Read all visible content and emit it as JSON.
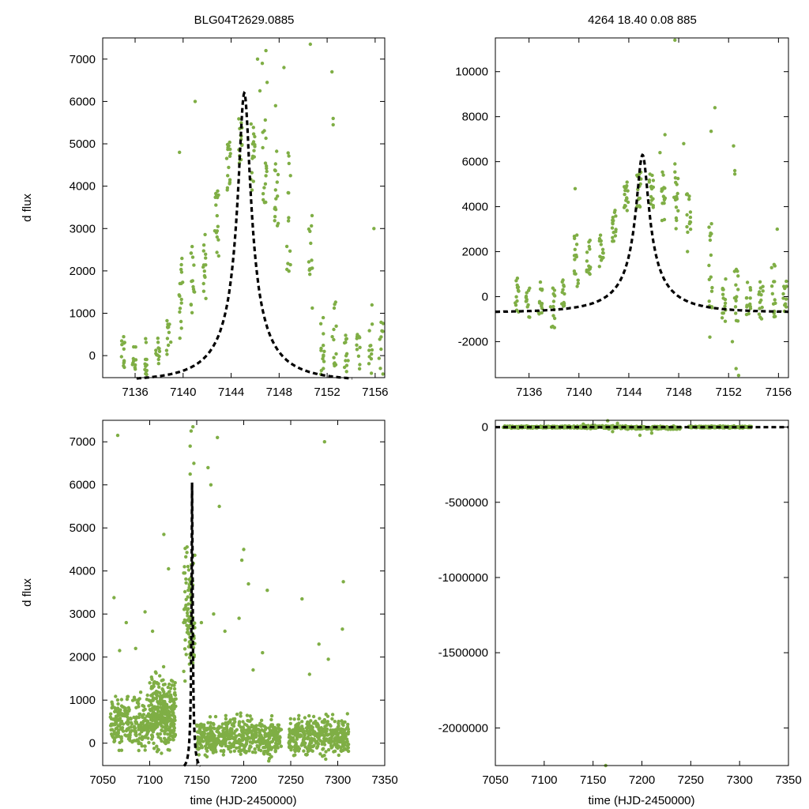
{
  "figure": {
    "title_left": "BLG04T2629.0885",
    "title_right": "4264  18.40  0.08  885"
  },
  "colors": {
    "points": "#7fae45",
    "model": "#000000",
    "frame": "#000000"
  },
  "chart_data": [
    {
      "id": "top-left",
      "type": "scatter",
      "title": "BLG04T2629.0885",
      "ylabel": "d flux",
      "xlabel": "",
      "xlim": [
        7133.3,
        7156.8
      ],
      "ylim": [
        -520,
        7500
      ],
      "xticks": [
        7136,
        7140,
        7144,
        7148,
        7152,
        7156
      ],
      "xtick_labels": [
        "7136",
        "7140",
        "7144",
        "7148",
        "7152",
        "7156"
      ],
      "yticks": [
        0,
        1000,
        2000,
        3000,
        4000,
        5000,
        6000,
        7000
      ],
      "ytick_labels": [
        "0",
        "1000",
        "2000",
        "3000",
        "4000",
        "5000",
        "6000",
        "7000"
      ],
      "model": {
        "t0": 7145.1,
        "peak": 6200,
        "base": -600,
        "u0": 0.1,
        "tE": 5.0
      },
      "clusters": [
        {
          "x": 7135.0,
          "ylo": -450,
          "yhi": 450,
          "n": 12
        },
        {
          "x": 7135.9,
          "ylo": -450,
          "yhi": 300,
          "n": 10
        },
        {
          "x": 7136.9,
          "ylo": -450,
          "yhi": 450,
          "n": 12
        },
        {
          "x": 7137.9,
          "ylo": -450,
          "yhi": 450,
          "n": 12
        },
        {
          "x": 7138.8,
          "ylo": -250,
          "yhi": 900,
          "n": 12
        },
        {
          "x": 7139.8,
          "ylo": 400,
          "yhi": 2300,
          "n": 16
        },
        {
          "x": 7140.8,
          "ylo": 1000,
          "yhi": 2600,
          "n": 14
        },
        {
          "x": 7141.8,
          "ylo": 1300,
          "yhi": 2900,
          "n": 14
        },
        {
          "x": 7142.8,
          "ylo": 2300,
          "yhi": 3900,
          "n": 16
        },
        {
          "x": 7143.8,
          "ylo": 3800,
          "yhi": 5100,
          "n": 16
        },
        {
          "x": 7144.8,
          "ylo": 4500,
          "yhi": 5600,
          "n": 14
        },
        {
          "x": 7145.8,
          "ylo": 3900,
          "yhi": 5500,
          "n": 16
        },
        {
          "x": 7146.8,
          "ylo": 3500,
          "yhi": 5600,
          "n": 16
        },
        {
          "x": 7147.8,
          "ylo": 2900,
          "yhi": 5000,
          "n": 16
        },
        {
          "x": 7148.8,
          "ylo": 1900,
          "yhi": 4900,
          "n": 14
        },
        {
          "x": 7150.6,
          "ylo": 800,
          "yhi": 3400,
          "n": 14
        },
        {
          "x": 7151.6,
          "ylo": -450,
          "yhi": 1000,
          "n": 14
        },
        {
          "x": 7152.6,
          "ylo": -250,
          "yhi": 1600,
          "n": 14
        },
        {
          "x": 7153.6,
          "ylo": -400,
          "yhi": 500,
          "n": 12
        },
        {
          "x": 7154.6,
          "ylo": -450,
          "yhi": 600,
          "n": 12
        },
        {
          "x": 7155.6,
          "ylo": -450,
          "yhi": 1200,
          "n": 12
        },
        {
          "x": 7156.5,
          "ylo": -450,
          "yhi": 800,
          "n": 10
        }
      ],
      "outliers": [
        [
          7139.7,
          4800
        ],
        [
          7141.0,
          6000
        ],
        [
          7146.4,
          6250
        ],
        [
          7146.6,
          6900
        ],
        [
          7146.9,
          7200
        ],
        [
          7148.4,
          6800
        ],
        [
          7147.7,
          5900
        ],
        [
          7150.6,
          7350
        ],
        [
          7152.4,
          6700
        ],
        [
          7152.5,
          5600
        ],
        [
          7152.5,
          5450
        ],
        [
          7155.9,
          3000
        ],
        [
          7146.2,
          7000
        ],
        [
          7147.0,
          6450
        ]
      ]
    },
    {
      "id": "top-right",
      "type": "scatter",
      "title": "4264  18.40  0.08  885",
      "ylabel": "",
      "xlabel": "",
      "xlim": [
        7133.3,
        7156.8
      ],
      "ylim": [
        -3600,
        11500
      ],
      "xticks": [
        7136,
        7140,
        7144,
        7148,
        7152,
        7156
      ],
      "xtick_labels": [
        "7136",
        "7140",
        "7144",
        "7148",
        "7152",
        "7156"
      ],
      "yticks": [
        -2000,
        0,
        2000,
        4000,
        6000,
        8000,
        10000
      ],
      "ytick_labels": [
        "-2000",
        "0",
        "2000",
        "4000",
        "6000",
        "8000",
        "10000"
      ],
      "model": {
        "t0": 7145.1,
        "peak": 6300,
        "base": -700,
        "u0": 0.1,
        "tE": 5.0
      },
      "clusters": [
        {
          "x": 7135.0,
          "ylo": -900,
          "yhi": 900,
          "n": 14
        },
        {
          "x": 7135.9,
          "ylo": -1000,
          "yhi": 500,
          "n": 12
        },
        {
          "x": 7136.9,
          "ylo": -900,
          "yhi": 700,
          "n": 14
        },
        {
          "x": 7137.9,
          "ylo": -1400,
          "yhi": 600,
          "n": 14
        },
        {
          "x": 7138.8,
          "ylo": -700,
          "yhi": 1000,
          "n": 12
        },
        {
          "x": 7139.8,
          "ylo": 300,
          "yhi": 2900,
          "n": 16
        },
        {
          "x": 7140.8,
          "ylo": 1000,
          "yhi": 2700,
          "n": 14
        },
        {
          "x": 7141.8,
          "ylo": 1300,
          "yhi": 2900,
          "n": 14
        },
        {
          "x": 7142.8,
          "ylo": 2400,
          "yhi": 3900,
          "n": 16
        },
        {
          "x": 7143.8,
          "ylo": 3800,
          "yhi": 5200,
          "n": 16
        },
        {
          "x": 7144.8,
          "ylo": 3900,
          "yhi": 5600,
          "n": 16
        },
        {
          "x": 7145.8,
          "ylo": 3800,
          "yhi": 5500,
          "n": 16
        },
        {
          "x": 7146.8,
          "ylo": 3300,
          "yhi": 5600,
          "n": 16
        },
        {
          "x": 7147.8,
          "ylo": 2800,
          "yhi": 5700,
          "n": 16
        },
        {
          "x": 7148.8,
          "ylo": 2000,
          "yhi": 5000,
          "n": 14
        },
        {
          "x": 7150.6,
          "ylo": -800,
          "yhi": 3400,
          "n": 16
        },
        {
          "x": 7151.6,
          "ylo": -1200,
          "yhi": 900,
          "n": 14
        },
        {
          "x": 7152.6,
          "ylo": -1300,
          "yhi": 1500,
          "n": 14
        },
        {
          "x": 7153.6,
          "ylo": -900,
          "yhi": 700,
          "n": 14
        },
        {
          "x": 7154.6,
          "ylo": -1000,
          "yhi": 800,
          "n": 14
        },
        {
          "x": 7155.6,
          "ylo": -900,
          "yhi": 1500,
          "n": 14
        },
        {
          "x": 7156.5,
          "ylo": -700,
          "yhi": 800,
          "n": 12
        }
      ],
      "outliers": [
        [
          7139.7,
          4800
        ],
        [
          7147.7,
          5900
        ],
        [
          7146.9,
          7200
        ],
        [
          7148.4,
          6800
        ],
        [
          7150.6,
          7350
        ],
        [
          7150.9,
          8400
        ],
        [
          7152.4,
          6700
        ],
        [
          7152.5,
          5600
        ],
        [
          7152.5,
          5450
        ],
        [
          7155.9,
          3000
        ],
        [
          7152.3,
          -2000
        ],
        [
          7152.6,
          -3200
        ],
        [
          7152.8,
          -3500
        ],
        [
          7147.7,
          11400
        ],
        [
          7150.5,
          -1800
        ],
        [
          7146.5,
          6400
        ]
      ]
    },
    {
      "id": "bottom-left",
      "type": "scatter",
      "title": "",
      "ylabel": "d flux",
      "xlabel": "time (HJD-2450000)",
      "xlim": [
        7050,
        7350
      ],
      "ylim": [
        -520,
        7500
      ],
      "xticks": [
        7050,
        7100,
        7150,
        7200,
        7250,
        7300,
        7350
      ],
      "xtick_labels": [
        "7050",
        "7100",
        "7150",
        "7200",
        "7250",
        "7300",
        "7350"
      ],
      "yticks": [
        0,
        1000,
        2000,
        3000,
        4000,
        5000,
        6000,
        7000
      ],
      "ytick_labels": [
        "0",
        "1000",
        "2000",
        "3000",
        "4000",
        "5000",
        "6000",
        "7000"
      ],
      "model": {
        "t0": 7145.1,
        "peak": 6200,
        "base": -600,
        "u0": 0.1,
        "tE": 5.0
      },
      "bands": [
        {
          "x0": 7058,
          "x1": 7128,
          "ylo": -400,
          "yhi": 1300,
          "n": 420
        },
        {
          "x0": 7100,
          "x1": 7128,
          "ylo": 0,
          "yhi": 1900,
          "n": 150
        },
        {
          "x0": 7150,
          "x1": 7240,
          "ylo": -500,
          "yhi": 800,
          "n": 520
        },
        {
          "x0": 7248,
          "x1": 7312,
          "ylo": -450,
          "yhi": 800,
          "n": 380
        },
        {
          "x0": 7136,
          "x1": 7148,
          "ylo": 800,
          "yhi": 5200,
          "n": 90
        }
      ],
      "outliers": [
        [
          7066,
          7150
        ],
        [
          7062,
          3380
        ],
        [
          7075,
          2800
        ],
        [
          7095,
          3050
        ],
        [
          7115,
          4850
        ],
        [
          7120,
          4050
        ],
        [
          7143,
          6900
        ],
        [
          7144,
          7250
        ],
        [
          7146,
          7350
        ],
        [
          7147,
          6500
        ],
        [
          7143,
          6250
        ],
        [
          7162,
          6400
        ],
        [
          7165,
          6000
        ],
        [
          7172,
          7100
        ],
        [
          7174,
          5500
        ],
        [
          7200,
          4500
        ],
        [
          7198,
          4250
        ],
        [
          7205,
          3700
        ],
        [
          7225,
          3550
        ],
        [
          7262,
          3350
        ],
        [
          7286,
          7000
        ],
        [
          7306,
          3750
        ],
        [
          7305,
          2650
        ],
        [
          7280,
          2300
        ],
        [
          7290,
          1950
        ],
        [
          7180,
          2600
        ],
        [
          7195,
          2900
        ],
        [
          7220,
          2100
        ],
        [
          7168,
          3000
        ],
        [
          7155,
          2800
        ],
        [
          7210,
          1700
        ],
        [
          7270,
          1600
        ],
        [
          7085,
          2200
        ],
        [
          7068,
          2150
        ],
        [
          7103,
          2600
        ]
      ]
    },
    {
      "id": "bottom-right",
      "type": "scatter",
      "title": "",
      "ylabel": "",
      "xlabel": "time (HJD-2450000)",
      "xlim": [
        7050,
        7350
      ],
      "ylim": [
        -2250000,
        45000
      ],
      "xticks": [
        7050,
        7100,
        7150,
        7200,
        7250,
        7300,
        7350
      ],
      "xtick_labels": [
        "7050",
        "7100",
        "7150",
        "7200",
        "7250",
        "7300",
        "7350"
      ],
      "yticks": [
        -2000000,
        -1500000,
        -1000000,
        -500000,
        0
      ],
      "ytick_labels": [
        "-2000000",
        "-1500000",
        "-1000000",
        "-500000",
        "0"
      ],
      "model": {
        "t0": 7145.1,
        "peak": 6300,
        "base": -700,
        "u0": 0.1,
        "tE": 5.0
      },
      "bands": [
        {
          "x0": 7058,
          "x1": 7128,
          "ylo": -9000,
          "yhi": 9000,
          "n": 260
        },
        {
          "x0": 7130,
          "x1": 7185,
          "ylo": -15000,
          "yhi": 15000,
          "n": 200
        },
        {
          "x0": 7185,
          "x1": 7240,
          "ylo": -20000,
          "yhi": 10000,
          "n": 220
        },
        {
          "x0": 7248,
          "x1": 7312,
          "ylo": -9000,
          "yhi": 9000,
          "n": 240
        }
      ],
      "outliers": [
        [
          7163,
          -2250000
        ],
        [
          7165,
          42000
        ],
        [
          7198,
          -55000
        ],
        [
          7170,
          -30000
        ],
        [
          7175,
          25000
        ],
        [
          7140,
          20000
        ],
        [
          7210,
          -40000
        ]
      ]
    }
  ]
}
